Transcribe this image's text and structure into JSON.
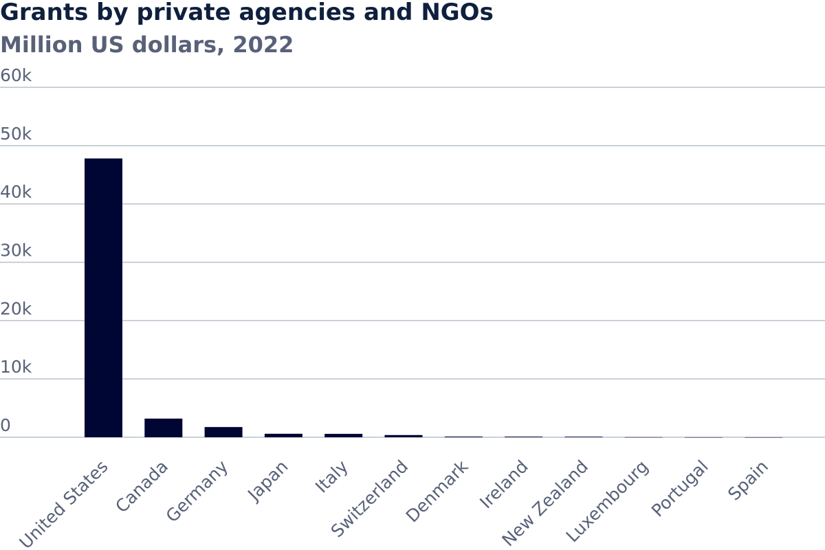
{
  "chart_data": {
    "type": "bar",
    "title": "Grants by private agencies and NGOs",
    "subtitle": "Million US dollars, 2022",
    "xlabel": "",
    "ylabel": "",
    "categories": [
      "United States",
      "Canada",
      "Germany",
      "Japan",
      "Italy",
      "Switzerland",
      "Denmark",
      "Ireland",
      "New Zealand",
      "Luxembourg",
      "Portugal",
      "Spain"
    ],
    "values": [
      47800,
      3200,
      1750,
      600,
      580,
      380,
      120,
      110,
      100,
      20,
      10,
      5
    ],
    "ylim": [
      0,
      60000
    ],
    "yticks": [
      0,
      10000,
      20000,
      30000,
      40000,
      50000,
      60000
    ],
    "ytick_labels": [
      "0",
      "10k",
      "20k",
      "30k",
      "40k",
      "50k",
      "60k"
    ],
    "grid": true,
    "legend": "none",
    "colors": {
      "bar": "#000633",
      "grid": "#b7c0cb",
      "text": "#586178",
      "title": "#0f1f3d"
    }
  }
}
